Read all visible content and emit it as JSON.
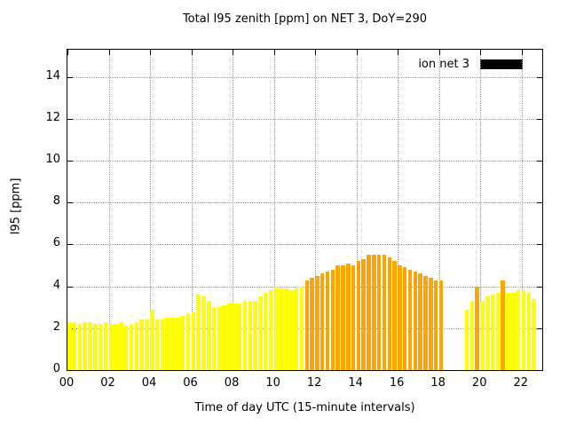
{
  "chart_data": {
    "type": "bar",
    "title": "Total I95 zenith [ppm] on NET 3, DoY=290",
    "xlabel": "Time of day UTC (15-minute intervals)",
    "ylabel": "I95 [ppm]",
    "ylim": [
      0,
      15.3
    ],
    "yticks": [
      0,
      2,
      4,
      6,
      8,
      10,
      12,
      14
    ],
    "xtick_hours": [
      0,
      2,
      4,
      6,
      8,
      10,
      12,
      14,
      16,
      18,
      20,
      22
    ],
    "xtick_labels": [
      "00",
      "02",
      "04",
      "06",
      "08",
      "10",
      "12",
      "14",
      "16",
      "18",
      "20",
      "22"
    ],
    "x_domain_hours": [
      0,
      23
    ],
    "grid": true,
    "legend": {
      "label": "ion net 3",
      "swatch_color": "#000000",
      "position": "top-right"
    },
    "bar_colors": {
      "y": "#ffff00",
      "o": "#ffa500"
    },
    "interval_minutes": 15,
    "bars": [
      {
        "time": "00:00",
        "value": 2.3,
        "color": "y"
      },
      {
        "time": "00:15",
        "value": 2.3,
        "color": "y"
      },
      {
        "time": "00:30",
        "value": 2.2,
        "color": "y"
      },
      {
        "time": "00:45",
        "value": 2.3,
        "color": "y"
      },
      {
        "time": "01:00",
        "value": 2.3,
        "color": "y"
      },
      {
        "time": "01:15",
        "value": 2.2,
        "color": "y"
      },
      {
        "time": "01:30",
        "value": 2.2,
        "color": "y"
      },
      {
        "time": "01:45",
        "value": 2.3,
        "color": "y"
      },
      {
        "time": "02:00",
        "value": 2.2,
        "color": "y"
      },
      {
        "time": "02:15",
        "value": 2.2,
        "color": "y"
      },
      {
        "time": "02:30",
        "value": 2.3,
        "color": "y"
      },
      {
        "time": "02:45",
        "value": 2.1,
        "color": "y"
      },
      {
        "time": "03:00",
        "value": 2.2,
        "color": "y"
      },
      {
        "time": "03:15",
        "value": 2.3,
        "color": "y"
      },
      {
        "time": "03:30",
        "value": 2.4,
        "color": "y"
      },
      {
        "time": "03:45",
        "value": 2.4,
        "color": "y"
      },
      {
        "time": "04:00",
        "value": 2.9,
        "color": "y"
      },
      {
        "time": "04:15",
        "value": 2.4,
        "color": "y"
      },
      {
        "time": "04:30",
        "value": 2.4,
        "color": "y"
      },
      {
        "time": "04:45",
        "value": 2.5,
        "color": "y"
      },
      {
        "time": "05:00",
        "value": 2.5,
        "color": "y"
      },
      {
        "time": "05:15",
        "value": 2.5,
        "color": "y"
      },
      {
        "time": "05:30",
        "value": 2.6,
        "color": "y"
      },
      {
        "time": "05:45",
        "value": 2.7,
        "color": "y"
      },
      {
        "time": "06:00",
        "value": 2.8,
        "color": "y"
      },
      {
        "time": "06:15",
        "value": 3.6,
        "color": "y"
      },
      {
        "time": "06:30",
        "value": 3.5,
        "color": "y"
      },
      {
        "time": "06:45",
        "value": 3.3,
        "color": "y"
      },
      {
        "time": "07:00",
        "value": 3.0,
        "color": "y"
      },
      {
        "time": "07:15",
        "value": 3.0,
        "color": "y"
      },
      {
        "time": "07:30",
        "value": 3.1,
        "color": "y"
      },
      {
        "time": "07:45",
        "value": 3.2,
        "color": "y"
      },
      {
        "time": "08:00",
        "value": 3.2,
        "color": "y"
      },
      {
        "time": "08:15",
        "value": 3.2,
        "color": "y"
      },
      {
        "time": "08:30",
        "value": 3.3,
        "color": "y"
      },
      {
        "time": "08:45",
        "value": 3.3,
        "color": "y"
      },
      {
        "time": "09:00",
        "value": 3.3,
        "color": "y"
      },
      {
        "time": "09:15",
        "value": 3.5,
        "color": "y"
      },
      {
        "time": "09:30",
        "value": 3.7,
        "color": "y"
      },
      {
        "time": "09:45",
        "value": 3.8,
        "color": "y"
      },
      {
        "time": "10:00",
        "value": 4.0,
        "color": "y"
      },
      {
        "time": "10:15",
        "value": 3.9,
        "color": "y"
      },
      {
        "time": "10:30",
        "value": 3.9,
        "color": "y"
      },
      {
        "time": "10:45",
        "value": 3.8,
        "color": "y"
      },
      {
        "time": "11:00",
        "value": 3.9,
        "color": "y"
      },
      {
        "time": "11:15",
        "value": 4.0,
        "color": "y"
      },
      {
        "time": "11:30",
        "value": 4.3,
        "color": "o"
      },
      {
        "time": "11:45",
        "value": 4.4,
        "color": "o"
      },
      {
        "time": "12:00",
        "value": 4.5,
        "color": "o"
      },
      {
        "time": "12:15",
        "value": 4.6,
        "color": "o"
      },
      {
        "time": "12:30",
        "value": 4.7,
        "color": "o"
      },
      {
        "time": "12:45",
        "value": 4.8,
        "color": "o"
      },
      {
        "time": "13:00",
        "value": 5.0,
        "color": "o"
      },
      {
        "time": "13:15",
        "value": 5.0,
        "color": "o"
      },
      {
        "time": "13:30",
        "value": 5.1,
        "color": "o"
      },
      {
        "time": "13:45",
        "value": 5.0,
        "color": "o"
      },
      {
        "time": "14:00",
        "value": 5.2,
        "color": "o"
      },
      {
        "time": "14:15",
        "value": 5.3,
        "color": "o"
      },
      {
        "time": "14:30",
        "value": 5.5,
        "color": "o"
      },
      {
        "time": "14:45",
        "value": 5.5,
        "color": "o"
      },
      {
        "time": "15:00",
        "value": 5.5,
        "color": "o"
      },
      {
        "time": "15:15",
        "value": 5.5,
        "color": "o"
      },
      {
        "time": "15:30",
        "value": 5.4,
        "color": "o"
      },
      {
        "time": "15:45",
        "value": 5.2,
        "color": "o"
      },
      {
        "time": "16:00",
        "value": 5.0,
        "color": "o"
      },
      {
        "time": "16:15",
        "value": 4.9,
        "color": "o"
      },
      {
        "time": "16:30",
        "value": 4.8,
        "color": "o"
      },
      {
        "time": "16:45",
        "value": 4.7,
        "color": "o"
      },
      {
        "time": "17:00",
        "value": 4.6,
        "color": "o"
      },
      {
        "time": "17:15",
        "value": 4.5,
        "color": "o"
      },
      {
        "time": "17:30",
        "value": 4.4,
        "color": "o"
      },
      {
        "time": "17:45",
        "value": 4.3,
        "color": "o"
      },
      {
        "time": "18:00",
        "value": 4.3,
        "color": "o"
      },
      {
        "time": "19:15",
        "value": 2.9,
        "color": "y"
      },
      {
        "time": "19:30",
        "value": 3.3,
        "color": "y"
      },
      {
        "time": "19:45",
        "value": 4.0,
        "color": "o"
      },
      {
        "time": "20:00",
        "value": 3.3,
        "color": "y"
      },
      {
        "time": "20:15",
        "value": 3.5,
        "color": "y"
      },
      {
        "time": "20:30",
        "value": 3.6,
        "color": "y"
      },
      {
        "time": "20:45",
        "value": 3.7,
        "color": "y"
      },
      {
        "time": "21:00",
        "value": 4.3,
        "color": "o"
      },
      {
        "time": "21:15",
        "value": 3.7,
        "color": "y"
      },
      {
        "time": "21:30",
        "value": 3.7,
        "color": "y"
      },
      {
        "time": "21:45",
        "value": 3.8,
        "color": "y"
      },
      {
        "time": "22:00",
        "value": 3.8,
        "color": "y"
      },
      {
        "time": "22:15",
        "value": 3.7,
        "color": "y"
      },
      {
        "time": "22:30",
        "value": 3.4,
        "color": "y"
      }
    ]
  }
}
